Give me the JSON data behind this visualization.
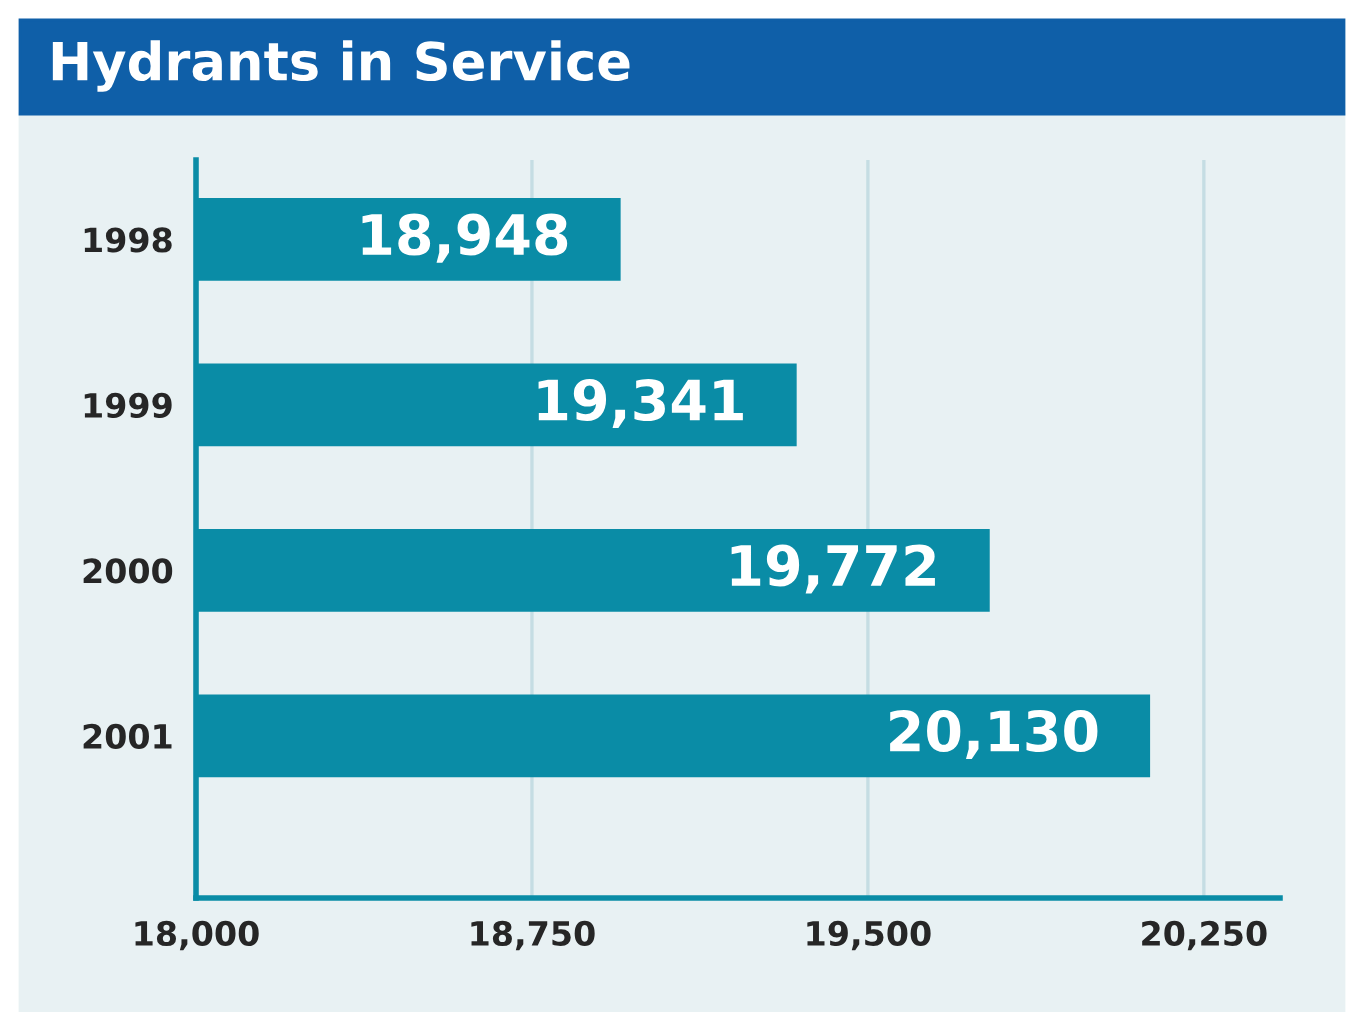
{
  "chart_data": {
    "type": "bar",
    "title": "Hydrants in Service",
    "orientation": "horizontal",
    "categories": [
      "1998",
      "1999",
      "2000",
      "2001"
    ],
    "values": [
      18948,
      19341,
      19772,
      20130
    ],
    "color": "#0a8ca6",
    "value_labels": [
      "18,948",
      "19,341",
      "19,772",
      "20,130"
    ],
    "xlim": [
      18000,
      20420
    ],
    "xticks": [
      {
        "value": 18000,
        "label": "18,000"
      },
      {
        "value": 18750,
        "label": "18,750"
      },
      {
        "value": 19500,
        "label": "19,500"
      },
      {
        "value": 20250,
        "label": "20,250"
      }
    ],
    "grid": "x",
    "legend": false
  }
}
